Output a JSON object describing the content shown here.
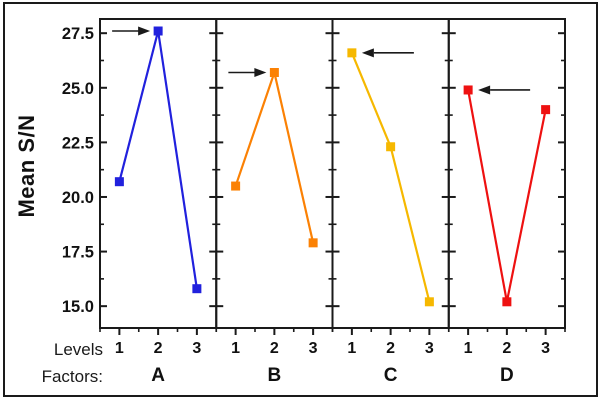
{
  "figure": {
    "background": "#ffffff",
    "border_color": "#1a1a1a",
    "ylabel": "Mean S/N",
    "levels_row_label": "Levels",
    "factors_row_label": "Factors:"
  },
  "chart_data": {
    "type": "line",
    "title": "",
    "ylabel": "Mean S/N",
    "xlabel": "Levels",
    "categories": [
      "1",
      "2",
      "3"
    ],
    "ylim": [
      14.0,
      28.15
    ],
    "yticks": [
      15.0,
      17.5,
      20.0,
      22.5,
      25.0,
      27.5
    ],
    "ytick_labels": [
      "15.0",
      "17.5",
      "20.0",
      "22.5",
      "25.0",
      "27.5"
    ],
    "minor_yticks": [
      16.25,
      18.75,
      21.25,
      23.75,
      26.25
    ],
    "minor_xticks": [
      0.5,
      1.5,
      2.5,
      3.5
    ],
    "grid": false,
    "legend_position": "none",
    "marker": "square",
    "panels": [
      {
        "factor": "A",
        "color": "#2121dd",
        "values": [
          20.7,
          27.6,
          15.8
        ],
        "arrow": {
          "points_to_level": 2,
          "points_to_value": 27.6,
          "direction": "right"
        }
      },
      {
        "factor": "B",
        "color": "#fb8104",
        "values": [
          20.5,
          25.7,
          17.9
        ],
        "arrow": {
          "points_to_level": 2,
          "points_to_value": 25.7,
          "direction": "right"
        }
      },
      {
        "factor": "C",
        "color": "#f6b800",
        "values": [
          26.6,
          22.3,
          15.2
        ],
        "arrow": {
          "points_to_level": 1,
          "points_to_value": 26.6,
          "direction": "left"
        }
      },
      {
        "factor": "D",
        "color": "#ee1111",
        "values": [
          24.9,
          15.2,
          24.0
        ],
        "arrow": {
          "points_to_level": 1,
          "points_to_value": 24.9,
          "direction": "left"
        }
      }
    ]
  }
}
